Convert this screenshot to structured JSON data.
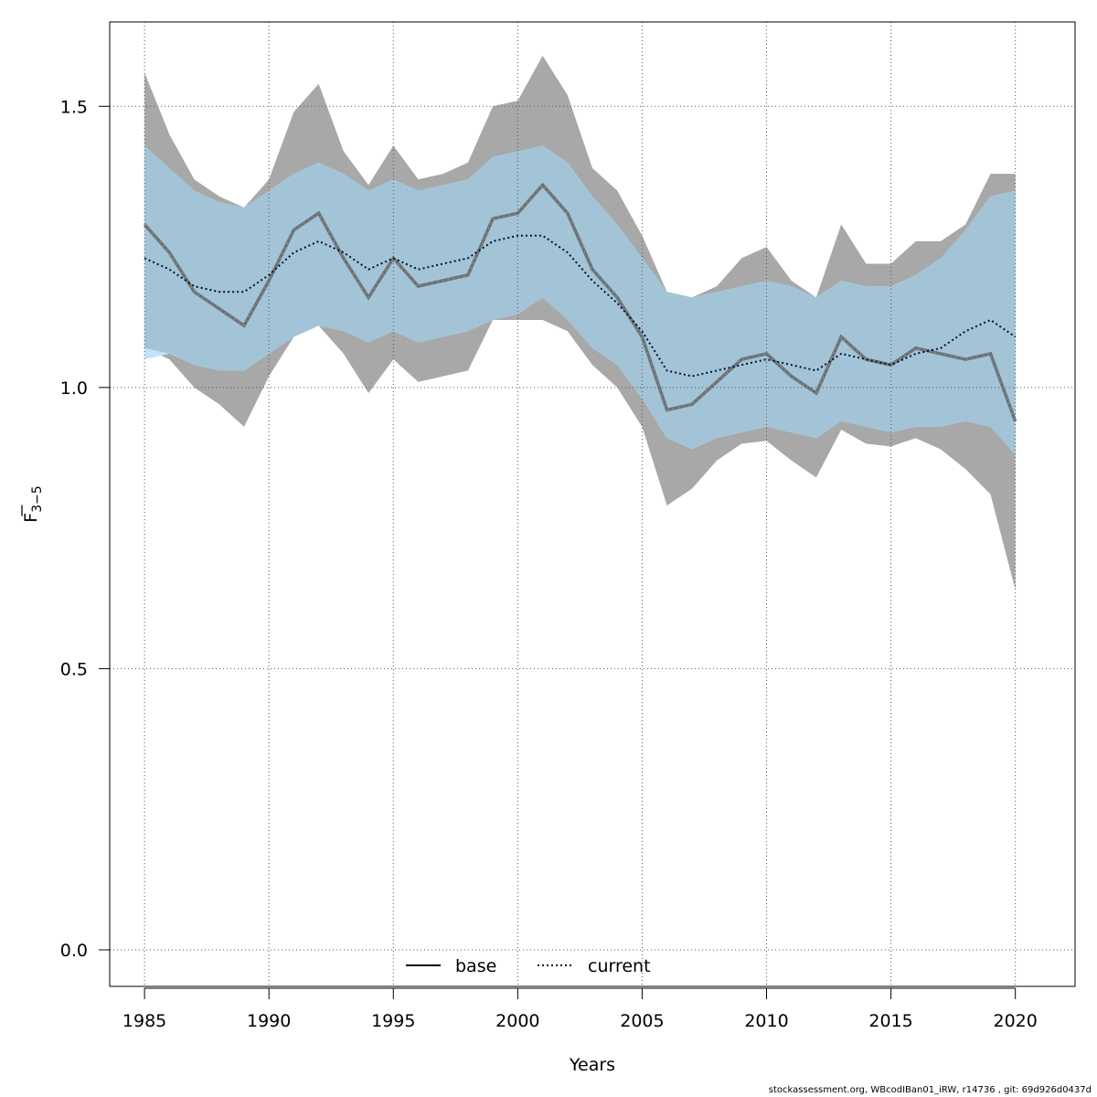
{
  "chart_data": {
    "type": "line",
    "xlabel": "Years",
    "ylabel": "F",
    "ylabel_sub": "3−5",
    "xlim": [
      1983.6,
      2022.4
    ],
    "ylim": [
      -0.065,
      1.65
    ],
    "x_ticks": [
      1985,
      1990,
      1995,
      2000,
      2005,
      2010,
      2015,
      2020
    ],
    "y_ticks": [
      0.0,
      0.5,
      1.0,
      1.5
    ],
    "y_tick_labels": [
      "0.0",
      "0.5",
      "1.0",
      "1.5"
    ],
    "grid": true,
    "legend_position": "bottom",
    "x": [
      1985,
      1986,
      1987,
      1988,
      1989,
      1990,
      1991,
      1992,
      1993,
      1994,
      1995,
      1996,
      1997,
      1998,
      1999,
      2000,
      2001,
      2002,
      2003,
      2004,
      2005,
      2006,
      2007,
      2008,
      2009,
      2010,
      2011,
      2012,
      2013,
      2014,
      2015,
      2016,
      2017,
      2018,
      2019,
      2020
    ],
    "series": [
      {
        "name": "base",
        "color": "#3a3a3a",
        "fill": "#a8a8a8",
        "values": [
          1.29,
          1.24,
          1.17,
          1.14,
          1.11,
          1.19,
          1.28,
          1.31,
          1.23,
          1.16,
          1.23,
          1.18,
          1.19,
          1.2,
          1.3,
          1.31,
          1.36,
          1.31,
          1.21,
          1.16,
          1.09,
          0.96,
          0.97,
          1.01,
          1.05,
          1.06,
          1.02,
          0.99,
          1.09,
          1.05,
          1.04,
          1.07,
          1.06,
          1.05,
          1.06,
          0.94
        ],
        "lower": [
          1.07,
          1.05,
          1.0,
          0.97,
          0.93,
          1.02,
          1.09,
          1.11,
          1.06,
          0.99,
          1.05,
          1.01,
          1.02,
          1.03,
          1.12,
          1.12,
          1.12,
          1.1,
          1.04,
          1.0,
          0.93,
          0.79,
          0.82,
          0.87,
          0.9,
          0.905,
          0.87,
          0.84,
          0.925,
          0.9,
          0.895,
          0.91,
          0.89,
          0.855,
          0.81,
          0.64
        ],
        "upper": [
          1.56,
          1.45,
          1.37,
          1.34,
          1.32,
          1.37,
          1.49,
          1.54,
          1.42,
          1.36,
          1.43,
          1.37,
          1.38,
          1.4,
          1.5,
          1.51,
          1.59,
          1.52,
          1.39,
          1.35,
          1.27,
          1.17,
          1.16,
          1.18,
          1.23,
          1.25,
          1.19,
          1.16,
          1.29,
          1.22,
          1.22,
          1.26,
          1.26,
          1.29,
          1.38,
          1.38
        ]
      },
      {
        "name": "current",
        "color": "#00112b",
        "fill": "#bfe4f8",
        "values": [
          1.23,
          1.21,
          1.18,
          1.17,
          1.17,
          1.2,
          1.24,
          1.26,
          1.24,
          1.21,
          1.23,
          1.21,
          1.22,
          1.23,
          1.26,
          1.27,
          1.27,
          1.24,
          1.19,
          1.15,
          1.1,
          1.03,
          1.02,
          1.03,
          1.04,
          1.05,
          1.04,
          1.03,
          1.06,
          1.05,
          1.04,
          1.06,
          1.07,
          1.1,
          1.12,
          1.09
        ],
        "lower": [
          1.05,
          1.06,
          1.04,
          1.03,
          1.03,
          1.06,
          1.09,
          1.11,
          1.1,
          1.08,
          1.1,
          1.08,
          1.09,
          1.1,
          1.12,
          1.13,
          1.16,
          1.12,
          1.07,
          1.04,
          0.98,
          0.91,
          0.89,
          0.91,
          0.92,
          0.93,
          0.92,
          0.91,
          0.94,
          0.93,
          0.92,
          0.93,
          0.93,
          0.94,
          0.93,
          0.88
        ],
        "upper": [
          1.43,
          1.39,
          1.35,
          1.33,
          1.32,
          1.35,
          1.38,
          1.4,
          1.38,
          1.35,
          1.37,
          1.35,
          1.36,
          1.37,
          1.41,
          1.42,
          1.43,
          1.4,
          1.34,
          1.29,
          1.23,
          1.17,
          1.16,
          1.17,
          1.18,
          1.19,
          1.18,
          1.16,
          1.19,
          1.18,
          1.18,
          1.2,
          1.23,
          1.28,
          1.34,
          1.35
        ]
      }
    ]
  },
  "footer": "stockassessment.org, WBcodIBan01_iRW, r14736 , git: 69d926d0437d"
}
